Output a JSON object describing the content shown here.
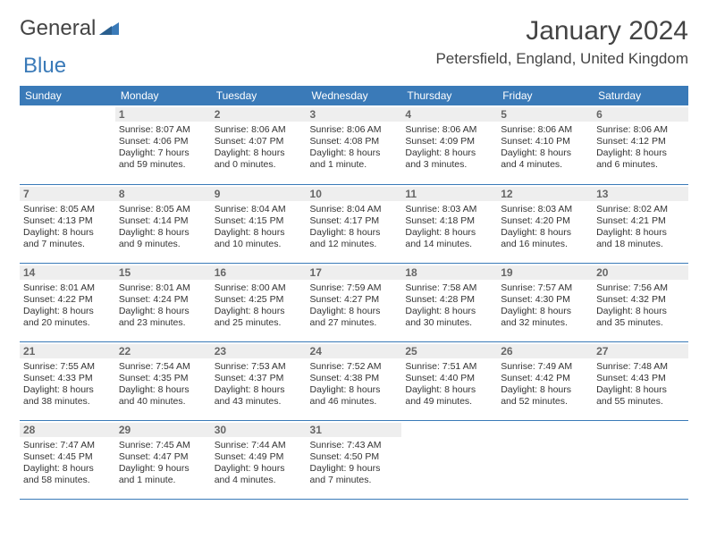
{
  "logo": {
    "part1": "General",
    "part2": "Blue"
  },
  "title": "January 2024",
  "location": "Petersfield, England, United Kingdom",
  "colors": {
    "header_bg": "#3a7ab8",
    "header_text": "#ffffff",
    "daynum_bg": "#eeeeee",
    "border": "#3a7ab8",
    "text": "#333333"
  },
  "daysOfWeek": [
    "Sunday",
    "Monday",
    "Tuesday",
    "Wednesday",
    "Thursday",
    "Friday",
    "Saturday"
  ],
  "weeks": [
    [
      {
        "n": "",
        "sunrise": "",
        "sunset": "",
        "daylight": ""
      },
      {
        "n": "1",
        "sunrise": "Sunrise: 8:07 AM",
        "sunset": "Sunset: 4:06 PM",
        "daylight": "Daylight: 7 hours and 59 minutes."
      },
      {
        "n": "2",
        "sunrise": "Sunrise: 8:06 AM",
        "sunset": "Sunset: 4:07 PM",
        "daylight": "Daylight: 8 hours and 0 minutes."
      },
      {
        "n": "3",
        "sunrise": "Sunrise: 8:06 AM",
        "sunset": "Sunset: 4:08 PM",
        "daylight": "Daylight: 8 hours and 1 minute."
      },
      {
        "n": "4",
        "sunrise": "Sunrise: 8:06 AM",
        "sunset": "Sunset: 4:09 PM",
        "daylight": "Daylight: 8 hours and 3 minutes."
      },
      {
        "n": "5",
        "sunrise": "Sunrise: 8:06 AM",
        "sunset": "Sunset: 4:10 PM",
        "daylight": "Daylight: 8 hours and 4 minutes."
      },
      {
        "n": "6",
        "sunrise": "Sunrise: 8:06 AM",
        "sunset": "Sunset: 4:12 PM",
        "daylight": "Daylight: 8 hours and 6 minutes."
      }
    ],
    [
      {
        "n": "7",
        "sunrise": "Sunrise: 8:05 AM",
        "sunset": "Sunset: 4:13 PM",
        "daylight": "Daylight: 8 hours and 7 minutes."
      },
      {
        "n": "8",
        "sunrise": "Sunrise: 8:05 AM",
        "sunset": "Sunset: 4:14 PM",
        "daylight": "Daylight: 8 hours and 9 minutes."
      },
      {
        "n": "9",
        "sunrise": "Sunrise: 8:04 AM",
        "sunset": "Sunset: 4:15 PM",
        "daylight": "Daylight: 8 hours and 10 minutes."
      },
      {
        "n": "10",
        "sunrise": "Sunrise: 8:04 AM",
        "sunset": "Sunset: 4:17 PM",
        "daylight": "Daylight: 8 hours and 12 minutes."
      },
      {
        "n": "11",
        "sunrise": "Sunrise: 8:03 AM",
        "sunset": "Sunset: 4:18 PM",
        "daylight": "Daylight: 8 hours and 14 minutes."
      },
      {
        "n": "12",
        "sunrise": "Sunrise: 8:03 AM",
        "sunset": "Sunset: 4:20 PM",
        "daylight": "Daylight: 8 hours and 16 minutes."
      },
      {
        "n": "13",
        "sunrise": "Sunrise: 8:02 AM",
        "sunset": "Sunset: 4:21 PM",
        "daylight": "Daylight: 8 hours and 18 minutes."
      }
    ],
    [
      {
        "n": "14",
        "sunrise": "Sunrise: 8:01 AM",
        "sunset": "Sunset: 4:22 PM",
        "daylight": "Daylight: 8 hours and 20 minutes."
      },
      {
        "n": "15",
        "sunrise": "Sunrise: 8:01 AM",
        "sunset": "Sunset: 4:24 PM",
        "daylight": "Daylight: 8 hours and 23 minutes."
      },
      {
        "n": "16",
        "sunrise": "Sunrise: 8:00 AM",
        "sunset": "Sunset: 4:25 PM",
        "daylight": "Daylight: 8 hours and 25 minutes."
      },
      {
        "n": "17",
        "sunrise": "Sunrise: 7:59 AM",
        "sunset": "Sunset: 4:27 PM",
        "daylight": "Daylight: 8 hours and 27 minutes."
      },
      {
        "n": "18",
        "sunrise": "Sunrise: 7:58 AM",
        "sunset": "Sunset: 4:28 PM",
        "daylight": "Daylight: 8 hours and 30 minutes."
      },
      {
        "n": "19",
        "sunrise": "Sunrise: 7:57 AM",
        "sunset": "Sunset: 4:30 PM",
        "daylight": "Daylight: 8 hours and 32 minutes."
      },
      {
        "n": "20",
        "sunrise": "Sunrise: 7:56 AM",
        "sunset": "Sunset: 4:32 PM",
        "daylight": "Daylight: 8 hours and 35 minutes."
      }
    ],
    [
      {
        "n": "21",
        "sunrise": "Sunrise: 7:55 AM",
        "sunset": "Sunset: 4:33 PM",
        "daylight": "Daylight: 8 hours and 38 minutes."
      },
      {
        "n": "22",
        "sunrise": "Sunrise: 7:54 AM",
        "sunset": "Sunset: 4:35 PM",
        "daylight": "Daylight: 8 hours and 40 minutes."
      },
      {
        "n": "23",
        "sunrise": "Sunrise: 7:53 AM",
        "sunset": "Sunset: 4:37 PM",
        "daylight": "Daylight: 8 hours and 43 minutes."
      },
      {
        "n": "24",
        "sunrise": "Sunrise: 7:52 AM",
        "sunset": "Sunset: 4:38 PM",
        "daylight": "Daylight: 8 hours and 46 minutes."
      },
      {
        "n": "25",
        "sunrise": "Sunrise: 7:51 AM",
        "sunset": "Sunset: 4:40 PM",
        "daylight": "Daylight: 8 hours and 49 minutes."
      },
      {
        "n": "26",
        "sunrise": "Sunrise: 7:49 AM",
        "sunset": "Sunset: 4:42 PM",
        "daylight": "Daylight: 8 hours and 52 minutes."
      },
      {
        "n": "27",
        "sunrise": "Sunrise: 7:48 AM",
        "sunset": "Sunset: 4:43 PM",
        "daylight": "Daylight: 8 hours and 55 minutes."
      }
    ],
    [
      {
        "n": "28",
        "sunrise": "Sunrise: 7:47 AM",
        "sunset": "Sunset: 4:45 PM",
        "daylight": "Daylight: 8 hours and 58 minutes."
      },
      {
        "n": "29",
        "sunrise": "Sunrise: 7:45 AM",
        "sunset": "Sunset: 4:47 PM",
        "daylight": "Daylight: 9 hours and 1 minute."
      },
      {
        "n": "30",
        "sunrise": "Sunrise: 7:44 AM",
        "sunset": "Sunset: 4:49 PM",
        "daylight": "Daylight: 9 hours and 4 minutes."
      },
      {
        "n": "31",
        "sunrise": "Sunrise: 7:43 AM",
        "sunset": "Sunset: 4:50 PM",
        "daylight": "Daylight: 9 hours and 7 minutes."
      },
      {
        "n": "",
        "sunrise": "",
        "sunset": "",
        "daylight": ""
      },
      {
        "n": "",
        "sunrise": "",
        "sunset": "",
        "daylight": ""
      },
      {
        "n": "",
        "sunrise": "",
        "sunset": "",
        "daylight": ""
      }
    ]
  ]
}
